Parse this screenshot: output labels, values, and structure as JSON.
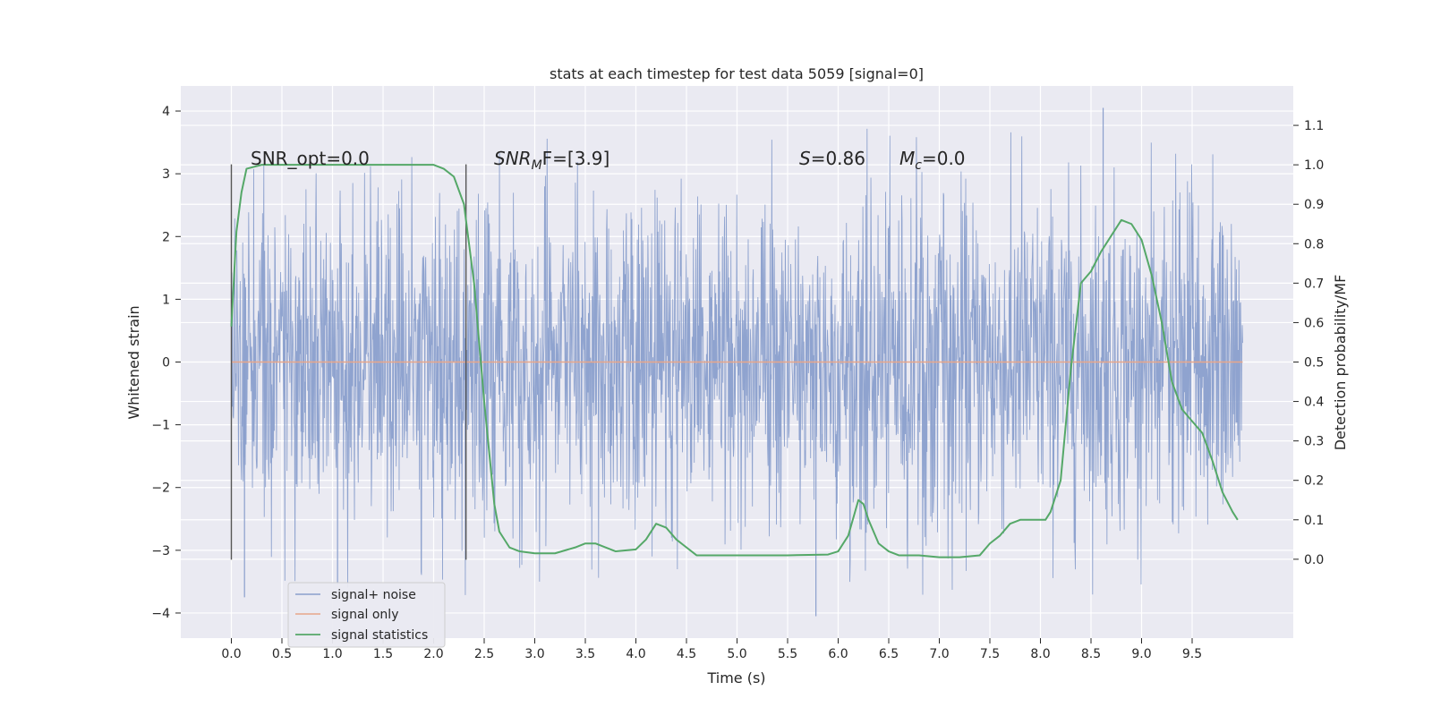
{
  "chart_data": {
    "type": "line",
    "title": "stats at each timestep for test data 5059 [signal=0]",
    "xlabel": "Time (s)",
    "ylabel": "Whitened strain",
    "y2label": "Detection probability/MF",
    "xlim": [
      -0.5,
      10.5
    ],
    "ylim": [
      -4.4,
      4.4
    ],
    "y2lim": [
      -0.2,
      1.2
    ],
    "xticks": [
      0.0,
      0.5,
      1.0,
      1.5,
      2.0,
      2.5,
      3.0,
      3.5,
      4.0,
      4.5,
      5.0,
      5.5,
      6.0,
      6.5,
      7.0,
      7.5,
      8.0,
      8.5,
      9.0,
      9.5
    ],
    "xtick_labels": [
      "0.0",
      "0.5",
      "1.0",
      "1.5",
      "2.0",
      "2.5",
      "3.0",
      "3.5",
      "4.0",
      "4.5",
      "5.0",
      "5.5",
      "6.0",
      "6.5",
      "7.0",
      "7.5",
      "8.0",
      "8.5",
      "9.0",
      "9.5"
    ],
    "yticks": [
      -4,
      -3,
      -2,
      -1,
      0,
      1,
      2,
      3,
      4
    ],
    "ytick_labels": [
      "−4",
      "−3",
      "−2",
      "−1",
      "0",
      "1",
      "2",
      "3",
      "4"
    ],
    "y2ticks": [
      0.0,
      0.1,
      0.2,
      0.3,
      0.4,
      0.5,
      0.6,
      0.7,
      0.8,
      0.9,
      1.0,
      1.1
    ],
    "y2tick_labels": [
      "0.0",
      "0.1",
      "0.2",
      "0.3",
      "0.4",
      "0.5",
      "0.6",
      "0.7",
      "0.8",
      "0.9",
      "1.0",
      "1.1"
    ],
    "grid": true,
    "legend_position": "lower-left",
    "annotations": {
      "snr_opt": "SNR_opt=0.0",
      "snr_mf_main": "SNR",
      "snr_mf_sub": "M",
      "snr_mf_rest": "F=[3.9]",
      "s_label": "S",
      "s_value": "=0.86",
      "mc_label": "M",
      "mc_sub": "c",
      "mc_value": "=0.0"
    },
    "vertical_lines_x": [
      0.0,
      2.32
    ],
    "vertical_lines_ylim": [
      -3.15,
      3.15
    ],
    "series": [
      {
        "name": "signal+ noise",
        "color": "#8a9fcc",
        "kind": "noise",
        "x_range": [
          0.0,
          10.0
        ],
        "typical_abs_amplitude": 1.3,
        "max": 4.05,
        "min": -4.05
      },
      {
        "name": "signal only",
        "color": "#e8a68a",
        "x": [
          0.0,
          10.0
        ],
        "y": [
          0.0,
          0.0
        ]
      },
      {
        "name": "signal statistics",
        "color": "#55a868",
        "axis": "y2",
        "x": [
          0.0,
          0.05,
          0.1,
          0.15,
          0.3,
          0.5,
          1.0,
          1.5,
          1.8,
          2.0,
          2.1,
          2.2,
          2.3,
          2.4,
          2.5,
          2.6,
          2.65,
          2.75,
          2.85,
          3.0,
          3.2,
          3.4,
          3.5,
          3.6,
          3.8,
          4.0,
          4.1,
          4.2,
          4.3,
          4.4,
          4.5,
          4.6,
          4.8,
          5.0,
          5.5,
          5.9,
          6.0,
          6.1,
          6.2,
          6.25,
          6.3,
          6.4,
          6.5,
          6.6,
          6.8,
          7.0,
          7.2,
          7.4,
          7.5,
          7.6,
          7.7,
          7.8,
          7.9,
          8.0,
          8.05,
          8.1,
          8.2,
          8.3,
          8.4,
          8.5,
          8.6,
          8.7,
          8.8,
          8.9,
          9.0,
          9.1,
          9.2,
          9.3,
          9.4,
          9.5,
          9.6,
          9.7,
          9.8,
          9.9,
          9.95
        ],
        "y": [
          0.59,
          0.83,
          0.93,
          0.99,
          1.0,
          1.0,
          1.0,
          1.0,
          1.0,
          1.0,
          0.99,
          0.97,
          0.9,
          0.7,
          0.4,
          0.14,
          0.07,
          0.03,
          0.02,
          0.015,
          0.015,
          0.03,
          0.04,
          0.04,
          0.02,
          0.025,
          0.05,
          0.09,
          0.08,
          0.05,
          0.03,
          0.01,
          0.01,
          0.01,
          0.01,
          0.012,
          0.02,
          0.06,
          0.15,
          0.14,
          0.1,
          0.04,
          0.02,
          0.01,
          0.01,
          0.005,
          0.005,
          0.01,
          0.04,
          0.06,
          0.09,
          0.1,
          0.1,
          0.1,
          0.1,
          0.12,
          0.2,
          0.48,
          0.7,
          0.73,
          0.78,
          0.82,
          0.86,
          0.85,
          0.81,
          0.72,
          0.6,
          0.45,
          0.38,
          0.35,
          0.32,
          0.25,
          0.17,
          0.12,
          0.1
        ]
      }
    ]
  }
}
